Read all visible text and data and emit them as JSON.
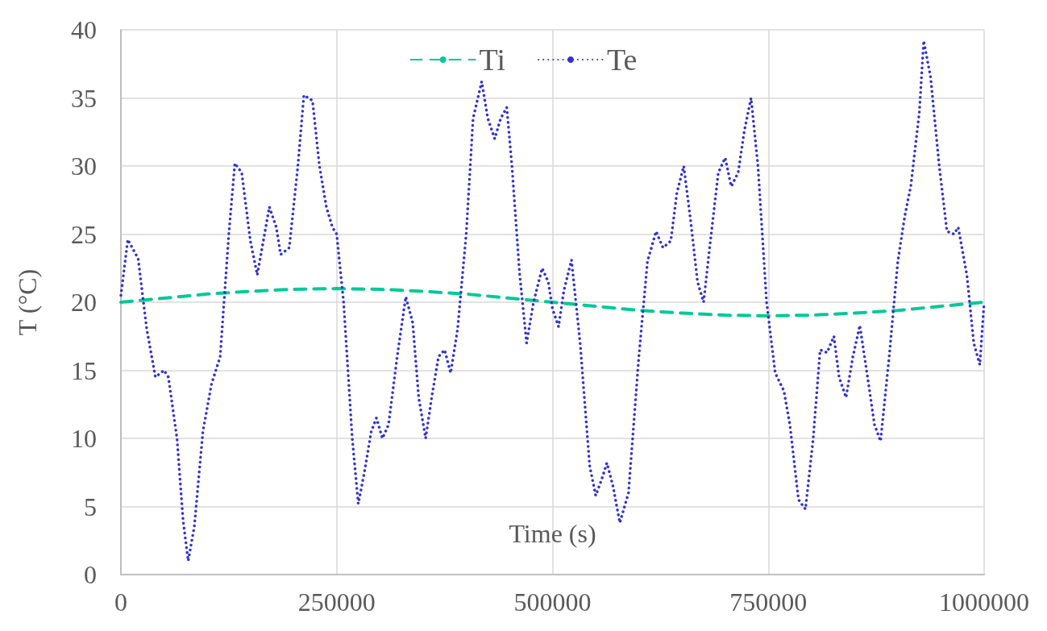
{
  "chart_data": {
    "type": "line",
    "xlabel": "Time (s)",
    "ylabel": "T (°C)",
    "xlim": [
      0,
      1000000
    ],
    "xticks": [
      0,
      250000,
      500000,
      750000,
      1000000
    ],
    "ylim": [
      0,
      40
    ],
    "yticks": [
      0,
      5,
      10,
      15,
      20,
      25,
      30,
      35,
      40
    ],
    "grid": true,
    "legend": "top",
    "marker": "none",
    "series": [
      {
        "name": "Ti",
        "color": "#00c896",
        "line_style": "dashed",
        "x": [
          0,
          50000,
          100000,
          150000,
          200000,
          250000,
          300000,
          350000,
          400000,
          450000,
          500000,
          550000,
          600000,
          650000,
          700000,
          750000,
          800000,
          850000,
          900000,
          950000,
          1000000
        ],
        "values": [
          20,
          20.3,
          20.6,
          20.8,
          20.95,
          21,
          20.95,
          20.8,
          20.6,
          20.3,
          20,
          19.7,
          19.4,
          19.2,
          19.05,
          19,
          19.05,
          19.2,
          19.4,
          19.7,
          20
        ]
      },
      {
        "name": "Te",
        "color": "#3333cc",
        "line_style": "dotted",
        "x": [
          0,
          8000,
          20000,
          30000,
          40000,
          50000,
          55000,
          65000,
          72000,
          78000,
          85000,
          95000,
          105000,
          115000,
          125000,
          132000,
          140000,
          150000,
          158000,
          165000,
          172000,
          180000,
          185000,
          195000,
          205000,
          212000,
          222000,
          230000,
          238000,
          245000,
          250000,
          258000,
          268000,
          275000,
          282000,
          290000,
          296000,
          303000,
          310000,
          320000,
          330000,
          338000,
          345000,
          353000,
          360000,
          368000,
          375000,
          382000,
          390000,
          400000,
          408000,
          418000,
          425000,
          433000,
          440000,
          447000,
          453000,
          462000,
          470000,
          478000,
          488000,
          495000,
          500000,
          507000,
          513000,
          522000,
          532000,
          543000,
          550000,
          557000,
          563000,
          570000,
          578000,
          588000,
          600000,
          610000,
          620000,
          628000,
          637000,
          644000,
          652000,
          660000,
          668000,
          675000,
          682000,
          692000,
          700000,
          707000,
          715000,
          722000,
          730000,
          738000,
          748000,
          758000,
          768000,
          775000,
          785000,
          793000,
          802000,
          810000,
          818000,
          826000,
          832000,
          840000,
          848000,
          856000,
          865000,
          873000,
          880000,
          890000,
          900000,
          908000,
          915000,
          925000,
          930000,
          938000,
          948000,
          957000,
          965000,
          970000,
          980000,
          988000,
          995000,
          1000000
        ],
        "values": [
          20.5,
          24.6,
          23.2,
          18,
          14.5,
          15,
          14.5,
          10,
          4,
          1,
          3.5,
          10.5,
          14,
          16,
          25,
          30.2,
          29.5,
          24.5,
          22,
          24.5,
          27,
          25.5,
          23.5,
          24,
          30,
          35.2,
          34.8,
          30,
          27,
          25.5,
          25,
          20,
          10,
          5.2,
          7.5,
          10.5,
          11.5,
          10,
          11,
          16,
          20.4,
          18.5,
          13,
          10,
          13,
          16,
          16.5,
          14.8,
          18,
          25,
          33.5,
          36.2,
          33.5,
          32,
          33.5,
          34.3,
          30,
          22,
          17,
          20,
          22.5,
          21.5,
          19.5,
          18.2,
          20.8,
          23.1,
          17,
          8,
          5.8,
          7,
          8.2,
          6.5,
          3.8,
          6,
          16,
          23,
          25.2,
          24,
          24.5,
          28,
          30,
          26,
          21.5,
          20,
          24,
          29.5,
          30.6,
          28.5,
          29.5,
          32.5,
          35,
          30,
          20,
          14.8,
          13.5,
          11,
          5.5,
          4.8,
          10,
          16.5,
          16.3,
          17.5,
          14.5,
          13,
          16,
          18.3,
          14.5,
          11,
          9.8,
          16,
          23,
          26.3,
          28.5,
          34,
          39.2,
          36.5,
          30,
          25.2,
          25,
          25.5,
          22,
          17,
          15.4,
          20
        ]
      }
    ]
  }
}
